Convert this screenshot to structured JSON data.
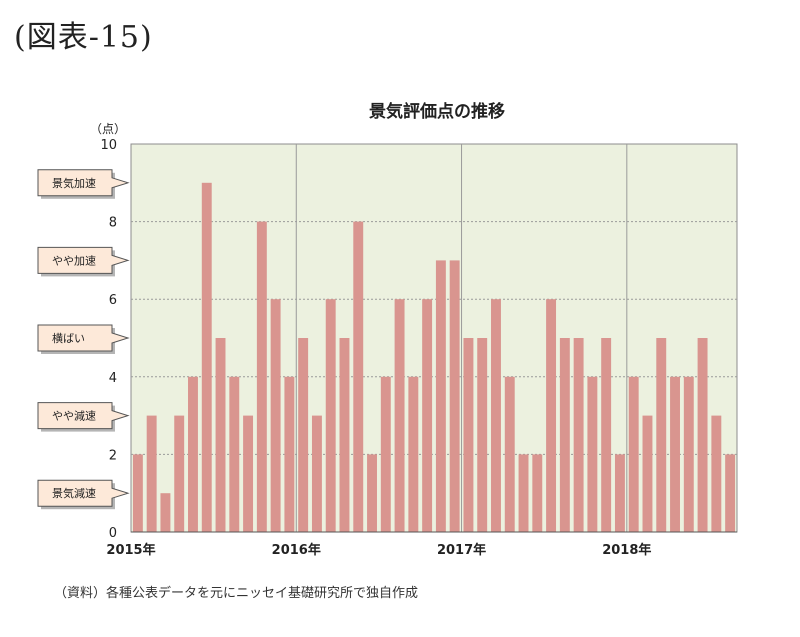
{
  "figure_label": "(図表-15)",
  "source": "（資料）各種公表データを元にニッセイ基礎研究所で独自作成",
  "colors": {
    "bar_fill": "#d9958f",
    "plot_bg": "#ecf1df",
    "gridline": "#9a9a9a",
    "callout_fill": "#fde9d9"
  },
  "chart_data": {
    "type": "bar",
    "title": "景気評価点の推移",
    "ylabel": "（点）",
    "xlabel": "",
    "ylim": [
      0,
      10
    ],
    "yticks": [
      0,
      2,
      4,
      6,
      8,
      10
    ],
    "year_labels": [
      "2015年",
      "2016年",
      "2017年",
      "2018年"
    ],
    "grid": "horizontal at y-ticks, vertical at year boundaries",
    "categories": [
      "2015-01",
      "2015-02",
      "2015-03",
      "2015-04",
      "2015-05",
      "2015-06",
      "2015-07",
      "2015-08",
      "2015-09",
      "2015-10",
      "2015-11",
      "2015-12",
      "2016-01",
      "2016-02",
      "2016-03",
      "2016-04",
      "2016-05",
      "2016-06",
      "2016-07",
      "2016-08",
      "2016-09",
      "2016-10",
      "2016-11",
      "2016-12",
      "2017-01",
      "2017-02",
      "2017-03",
      "2017-04",
      "2017-05",
      "2017-06",
      "2017-07",
      "2017-08",
      "2017-09",
      "2017-10",
      "2017-11",
      "2017-12",
      "2018-01",
      "2018-02",
      "2018-03",
      "2018-04",
      "2018-05",
      "2018-06",
      "2018-07",
      "2018-08"
    ],
    "values": [
      2,
      3,
      1,
      3,
      4,
      9,
      5,
      4,
      3,
      8,
      6,
      4,
      5,
      3,
      6,
      5,
      8,
      2,
      4,
      6,
      4,
      6,
      7,
      7,
      5,
      5,
      6,
      4,
      2,
      2,
      6,
      5,
      5,
      4,
      5,
      2,
      4,
      3,
      5,
      4,
      4,
      5,
      3,
      2
    ],
    "callouts": [
      {
        "label": "景気加速",
        "y": 9
      },
      {
        "label": "やや加速",
        "y": 7
      },
      {
        "label": "横ばい",
        "y": 5
      },
      {
        "label": "やや減速",
        "y": 3
      },
      {
        "label": "景気減速",
        "y": 1
      }
    ]
  }
}
